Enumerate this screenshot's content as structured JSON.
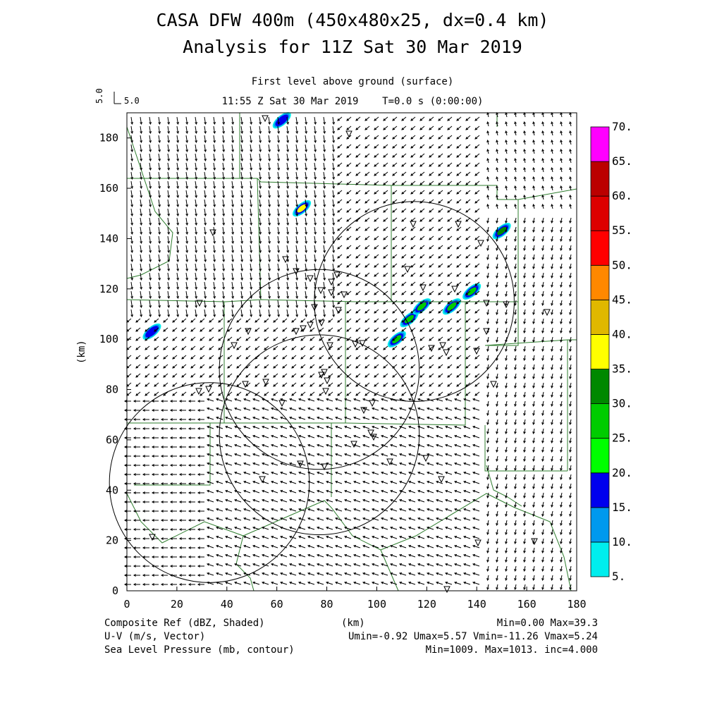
{
  "header": {
    "title_line1": "CASA DFW 400m (450x480x25, dx=0.4 km)",
    "title_line2": "Analysis for 11Z Sat 30 Mar 2019",
    "level": "First level above ground (surface)",
    "time": "11:55 Z Sat 30 Mar 2019    T=0.0 s (0:00:00)"
  },
  "vector_scale": {
    "label_vertical": "5.0",
    "label_horizontal": "5.0"
  },
  "footer": {
    "left1": "Composite Ref (dBZ, Shaded)",
    "left2": "U-V (m/s, Vector)",
    "left3": "Sea Level Pressure (mb, contour)",
    "center_unit": "(km)",
    "right1": "Min=0.00 Max=39.3",
    "right2": "Umin=-0.92 Umax=5.57 Vmin=-11.26 Vmax=5.24",
    "right3": "Min=1009. Max=1013. inc=4.000"
  },
  "chart_data": {
    "type": "heatmap",
    "xlabel": "",
    "ylabel": "(km)",
    "xlim": [
      0,
      180
    ],
    "ylim": [
      0,
      190
    ],
    "xticks": [
      0,
      20,
      40,
      60,
      80,
      100,
      120,
      140,
      160,
      180
    ],
    "yticks": [
      0,
      20,
      40,
      60,
      80,
      100,
      120,
      140,
      160,
      180
    ],
    "colorbar": {
      "levels": [
        5,
        10,
        15,
        20,
        25,
        30,
        35,
        40,
        45,
        50,
        55,
        60,
        65,
        70
      ],
      "labels": [
        "5.",
        "10.",
        "15.",
        "20.",
        "25.",
        "30.",
        "35.",
        "40.",
        "45.",
        "50.",
        "55.",
        "60.",
        "65.",
        "70."
      ],
      "colors": [
        "#00eeee",
        "#0099ee",
        "#0000ee",
        "#00ff00",
        "#00cc00",
        "#008800",
        "#ffff00",
        "#e0b800",
        "#ff8800",
        "#ff0000",
        "#dd0000",
        "#bb0000",
        "#ff00ff"
      ]
    },
    "radar_rings": [
      {
        "center": [
          33,
          43
        ],
        "radius": 40
      },
      {
        "center": [
          77,
          62
        ],
        "radius": 40
      },
      {
        "center": [
          77,
          88
        ],
        "radius": 40
      },
      {
        "center": [
          115,
          115
        ],
        "radius": 40
      }
    ],
    "reflectivity_cells": [
      {
        "x": 108,
        "y": 100,
        "dbz": 25
      },
      {
        "x": 113,
        "y": 108,
        "dbz": 25
      },
      {
        "x": 118,
        "y": 113,
        "dbz": 28
      },
      {
        "x": 130,
        "y": 113,
        "dbz": 25
      },
      {
        "x": 138,
        "y": 119,
        "dbz": 28
      },
      {
        "x": 150,
        "y": 143,
        "dbz": 30
      },
      {
        "x": 10,
        "y": 103,
        "dbz": 15
      },
      {
        "x": 70,
        "y": 152,
        "dbz": 35
      },
      {
        "x": 62,
        "y": 187,
        "dbz": 15
      }
    ],
    "wind_field_note": "",
    "series": []
  }
}
